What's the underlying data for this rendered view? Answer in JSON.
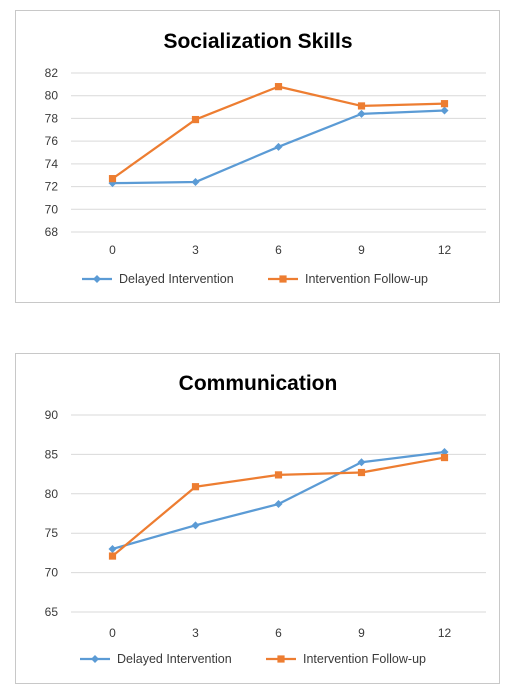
{
  "colors": {
    "delayed": "#5b9bd5",
    "followup": "#ed7d31",
    "grid": "#d9d9d9"
  },
  "chart_data": [
    {
      "type": "line",
      "title": "Socialization Skills",
      "categories": [
        "0",
        "3",
        "6",
        "9",
        "12"
      ],
      "ylim": [
        68,
        82
      ],
      "yticks": [
        "68",
        "70",
        "72",
        "74",
        "76",
        "78",
        "80",
        "82"
      ],
      "grid": true,
      "legend": "bottom",
      "series": [
        {
          "name": "Delayed Intervention",
          "values": [
            72.3,
            72.4,
            75.5,
            78.4,
            78.7
          ],
          "marker": "diamond",
          "color_key": "delayed"
        },
        {
          "name": "Intervention Follow-up",
          "values": [
            72.7,
            77.9,
            80.8,
            79.1,
            79.3
          ],
          "marker": "square",
          "color_key": "followup"
        }
      ]
    },
    {
      "type": "line",
      "title": "Communication",
      "categories": [
        "0",
        "3",
        "6",
        "9",
        "12"
      ],
      "ylim": [
        65,
        90
      ],
      "yticks": [
        "65",
        "70",
        "75",
        "80",
        "85",
        "90"
      ],
      "grid": true,
      "legend": "bottom",
      "series": [
        {
          "name": "Delayed Intervention",
          "values": [
            73.0,
            76.0,
            78.7,
            84.0,
            85.3
          ],
          "marker": "diamond",
          "color_key": "delayed"
        },
        {
          "name": "Intervention Follow-up",
          "values": [
            72.1,
            80.9,
            82.4,
            82.7,
            84.6
          ],
          "marker": "square",
          "color_key": "followup"
        }
      ]
    }
  ]
}
